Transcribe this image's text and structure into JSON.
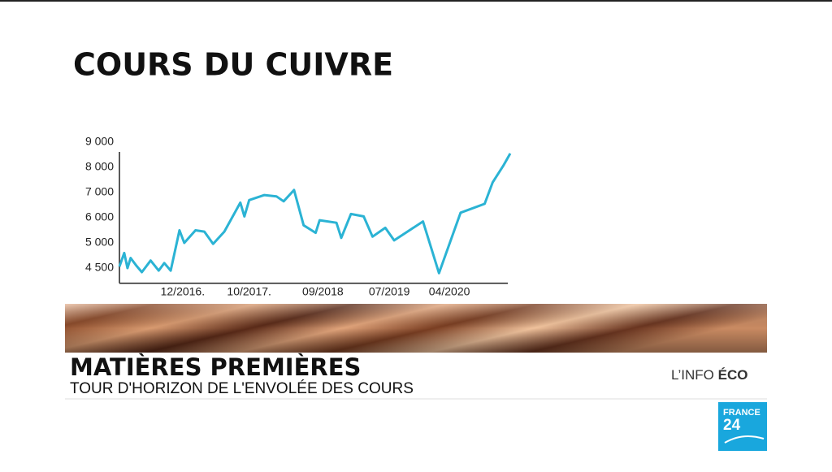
{
  "chart_data": {
    "type": "line",
    "title": "COURS DU CUIVRE",
    "x": [
      2016.13,
      2016.19,
      2016.23,
      2016.27,
      2016.34,
      2016.41,
      2016.52,
      2016.62,
      2016.69,
      2016.77,
      2016.88,
      2016.94,
      2017.08,
      2017.19,
      2017.3,
      2017.44,
      2017.64,
      2017.69,
      2017.75,
      2017.94,
      2018.09,
      2018.18,
      2018.31,
      2018.43,
      2018.58,
      2018.63,
      2018.84,
      2018.9,
      2019.02,
      2019.18,
      2019.29,
      2019.45,
      2019.56,
      2019.92,
      2020.12,
      2020.39,
      2020.69,
      2020.79,
      2020.93,
      2021.01
    ],
    "values": [
      4530,
      4800,
      4500,
      4700,
      4550,
      4420,
      4650,
      4450,
      4600,
      4450,
      5500,
      5000,
      5500,
      5450,
      4980,
      5450,
      6600,
      6050,
      6700,
      6900,
      6850,
      6650,
      7100,
      5700,
      5400,
      5900,
      5800,
      5200,
      6150,
      6050,
      5250,
      5600,
      5100,
      5850,
      4400,
      6200,
      6550,
      7400,
      8100,
      8550
    ],
    "color": "#2bb3d4",
    "xlim": [
      2016.13,
      2021.01
    ],
    "xticks": [
      {
        "value": 2016.92,
        "label": "12/2016."
      },
      {
        "value": 2017.75,
        "label": "10/2017."
      },
      {
        "value": 2018.67,
        "label": "09/2018"
      },
      {
        "value": 2019.5,
        "label": "07/2019"
      },
      {
        "value": 2020.25,
        "label": "04/2020"
      }
    ],
    "ylim": [
      4200,
      9000
    ],
    "yticks": [
      {
        "value": 4500,
        "label": "4 500"
      },
      {
        "value": 5000,
        "label": "5 000"
      },
      {
        "value": 6000,
        "label": "6 000"
      },
      {
        "value": 7000,
        "label": "7 000"
      },
      {
        "value": 8000,
        "label": "8 000"
      },
      {
        "value": 9000,
        "label": "9 000"
      }
    ]
  },
  "banner": {
    "title": "MATIÈRES PREMIÈRES",
    "subtitle": "TOUR D'HORIZON DE L'ENVOLÉE DES COURS",
    "tag_light": "L’INFO",
    "tag_bold": "ÉCO"
  },
  "logo": {
    "top": "FRANCE",
    "bottom": "24"
  }
}
